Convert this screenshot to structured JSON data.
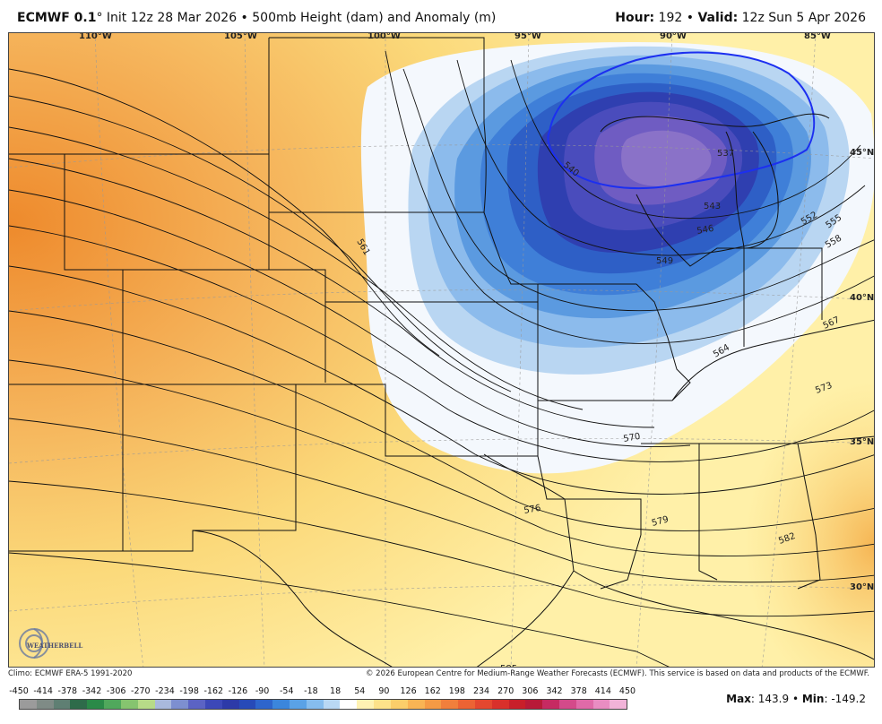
{
  "header": {
    "model": "ECMWF 0.1",
    "degree_sign": "°",
    "init_text": " Init 12z 28 Mar 2026 • 500mb Height (dam) and Anomaly (m)",
    "hour_key": "Hour:",
    "hour_value": "192",
    "bullet": "•",
    "valid_key": "Valid:",
    "valid_value": "12z Sun 5 Apr 2026"
  },
  "map": {
    "longitude_labels": [
      "110°W",
      "105°W",
      "100°W",
      "95°W",
      "90°W",
      "85°W"
    ],
    "latitude_labels": [
      "45°N",
      "40°N",
      "35°N",
      "30°N"
    ],
    "contour_labels": [
      "537",
      "540",
      "543",
      "546",
      "549",
      "552",
      "555",
      "558",
      "561",
      "564",
      "567",
      "570",
      "573",
      "576",
      "579",
      "582",
      "585"
    ],
    "low_center_contour": "540",
    "colors": {
      "low_core": "#7b62c0",
      "deep_blue": "#2f3fb0",
      "blue": "#3f7fd8",
      "light_blue": "#9cc4ee",
      "very_light": "#eef4fb",
      "pale_yellow": "#fff0a8",
      "yellow": "#fbd97a",
      "orange": "#f5a040",
      "dark_orange": "#ee8a2c",
      "contour_highlight": "#1c2ff0"
    },
    "logo_text": "WEATHERBELL"
  },
  "footer": {
    "climo": "Climo: ECMWF ERA-5 1991-2020",
    "copyright": "© 2026 European Centre for Medium-Range Weather Forecasts (ECMWF). This service is based on data and products of the ECMWF."
  },
  "colorbar": {
    "ticks": [
      "-450",
      "-414",
      "-378",
      "-342",
      "-306",
      "-270",
      "-234",
      "-198",
      "-162",
      "-126",
      "-90",
      "-54",
      "-18",
      "18",
      "54",
      "90",
      "126",
      "162",
      "198",
      "234",
      "270",
      "306",
      "342",
      "378",
      "414",
      "450"
    ],
    "colors": [
      "#9b9b9b",
      "#7f8b86",
      "#5f7f73",
      "#2e6b4a",
      "#2a8a48",
      "#50a85c",
      "#86c46f",
      "#b7db88",
      "#a9b9dd",
      "#7d8fd0",
      "#5b63c4",
      "#3c48b8",
      "#2d3aa8",
      "#274ab8",
      "#2e65cc",
      "#3b86dc",
      "#5aa2e6",
      "#86bdee",
      "#b9d8f4",
      "#ffffff",
      "#fff2b3",
      "#fde28a",
      "#fbce6a",
      "#f9b454",
      "#f59a45",
      "#f17f3c",
      "#ec6334",
      "#e4472f",
      "#d9302b",
      "#c81f2a",
      "#b81a38",
      "#c62a62",
      "#d44a8a",
      "#e06aa8",
      "#e98dc2",
      "#f1b3d8"
    ]
  },
  "stats": {
    "max_label": "Max",
    "max_value": "143.9",
    "min_label": "Min",
    "min_value": "-149.2"
  }
}
